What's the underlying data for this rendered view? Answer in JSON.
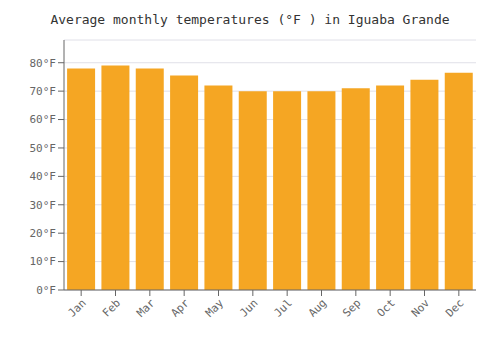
{
  "chart_data": {
    "type": "bar",
    "title": "Average monthly temperatures (°F ) in Iguaba Grande",
    "categories": [
      "Jan",
      "Feb",
      "Mar",
      "Apr",
      "May",
      "Jun",
      "Jul",
      "Aug",
      "Sep",
      "Oct",
      "Nov",
      "Dec"
    ],
    "values": [
      78,
      79,
      78,
      75.5,
      72,
      70,
      70,
      70,
      71,
      72,
      74,
      76.5
    ],
    "color": "#F5A623",
    "ylim": [
      0,
      88
    ],
    "yticks": [
      {
        "value": 0,
        "label": "0°F"
      },
      {
        "value": 10,
        "label": "10°F"
      },
      {
        "value": 20,
        "label": "20°F"
      },
      {
        "value": 30,
        "label": "30°F"
      },
      {
        "value": 40,
        "label": "40°F"
      },
      {
        "value": 50,
        "label": "50°F"
      },
      {
        "value": 60,
        "label": "60°F"
      },
      {
        "value": 70,
        "label": "70°F"
      },
      {
        "value": 80,
        "label": "80°F"
      }
    ],
    "grid": true
  }
}
